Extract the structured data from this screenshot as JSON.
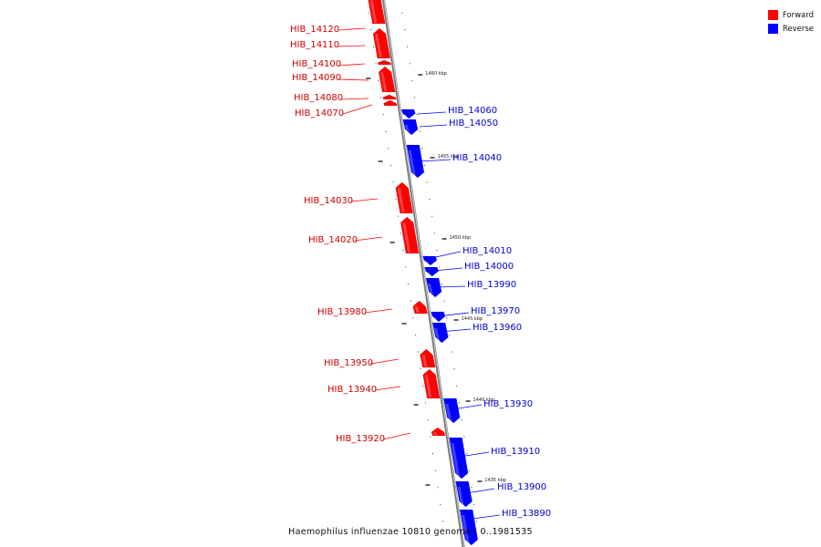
{
  "colors": {
    "forward": "#ff0000",
    "reverse": "#0000ff",
    "backbone": "#999999"
  },
  "legend": [
    {
      "label": "Forward",
      "color": "#ff0000"
    },
    {
      "label": "Reverse",
      "color": "#0000ff"
    }
  ],
  "caption": "Haemophilus influenzae 10810 genome - 0..1981535",
  "scale_ticks": [
    {
      "label": "1460 kbp"
    },
    {
      "label": "1455 kbp"
    },
    {
      "label": "1450 kbp"
    },
    {
      "label": "1445 kbp"
    },
    {
      "label": "1440 kbp"
    },
    {
      "label": "1435 kbp"
    }
  ],
  "genes": [
    {
      "name": "HIB_14120",
      "strand": "forward"
    },
    {
      "name": "HIB_14110",
      "strand": "forward"
    },
    {
      "name": "HIB_14100",
      "strand": "forward"
    },
    {
      "name": "HIB_14090",
      "strand": "forward"
    },
    {
      "name": "HIB_14080",
      "strand": "forward"
    },
    {
      "name": "HIB_14070",
      "strand": "forward"
    },
    {
      "name": "HIB_14060",
      "strand": "reverse"
    },
    {
      "name": "HIB_14050",
      "strand": "reverse"
    },
    {
      "name": "HIB_14040",
      "strand": "reverse"
    },
    {
      "name": "HIB_14030",
      "strand": "forward"
    },
    {
      "name": "HIB_14020",
      "strand": "forward"
    },
    {
      "name": "HIB_14010",
      "strand": "reverse"
    },
    {
      "name": "HIB_14000",
      "strand": "reverse"
    },
    {
      "name": "HIB_13990",
      "strand": "reverse"
    },
    {
      "name": "HIB_13980",
      "strand": "forward"
    },
    {
      "name": "HIB_13970",
      "strand": "reverse"
    },
    {
      "name": "HIB_13960",
      "strand": "reverse"
    },
    {
      "name": "HIB_13950",
      "strand": "forward"
    },
    {
      "name": "HIB_13940",
      "strand": "forward"
    },
    {
      "name": "HIB_13930",
      "strand": "reverse"
    },
    {
      "name": "HIB_13920",
      "strand": "forward"
    },
    {
      "name": "HIB_13910",
      "strand": "reverse"
    },
    {
      "name": "HIB_13900",
      "strand": "reverse"
    },
    {
      "name": "HIB_13890",
      "strand": "reverse"
    }
  ]
}
